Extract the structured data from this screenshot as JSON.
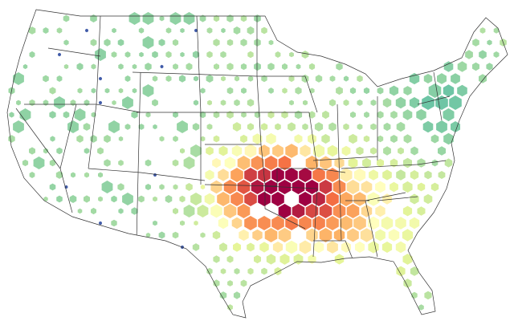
{
  "map": {
    "type": "hexbin"
  }
}
